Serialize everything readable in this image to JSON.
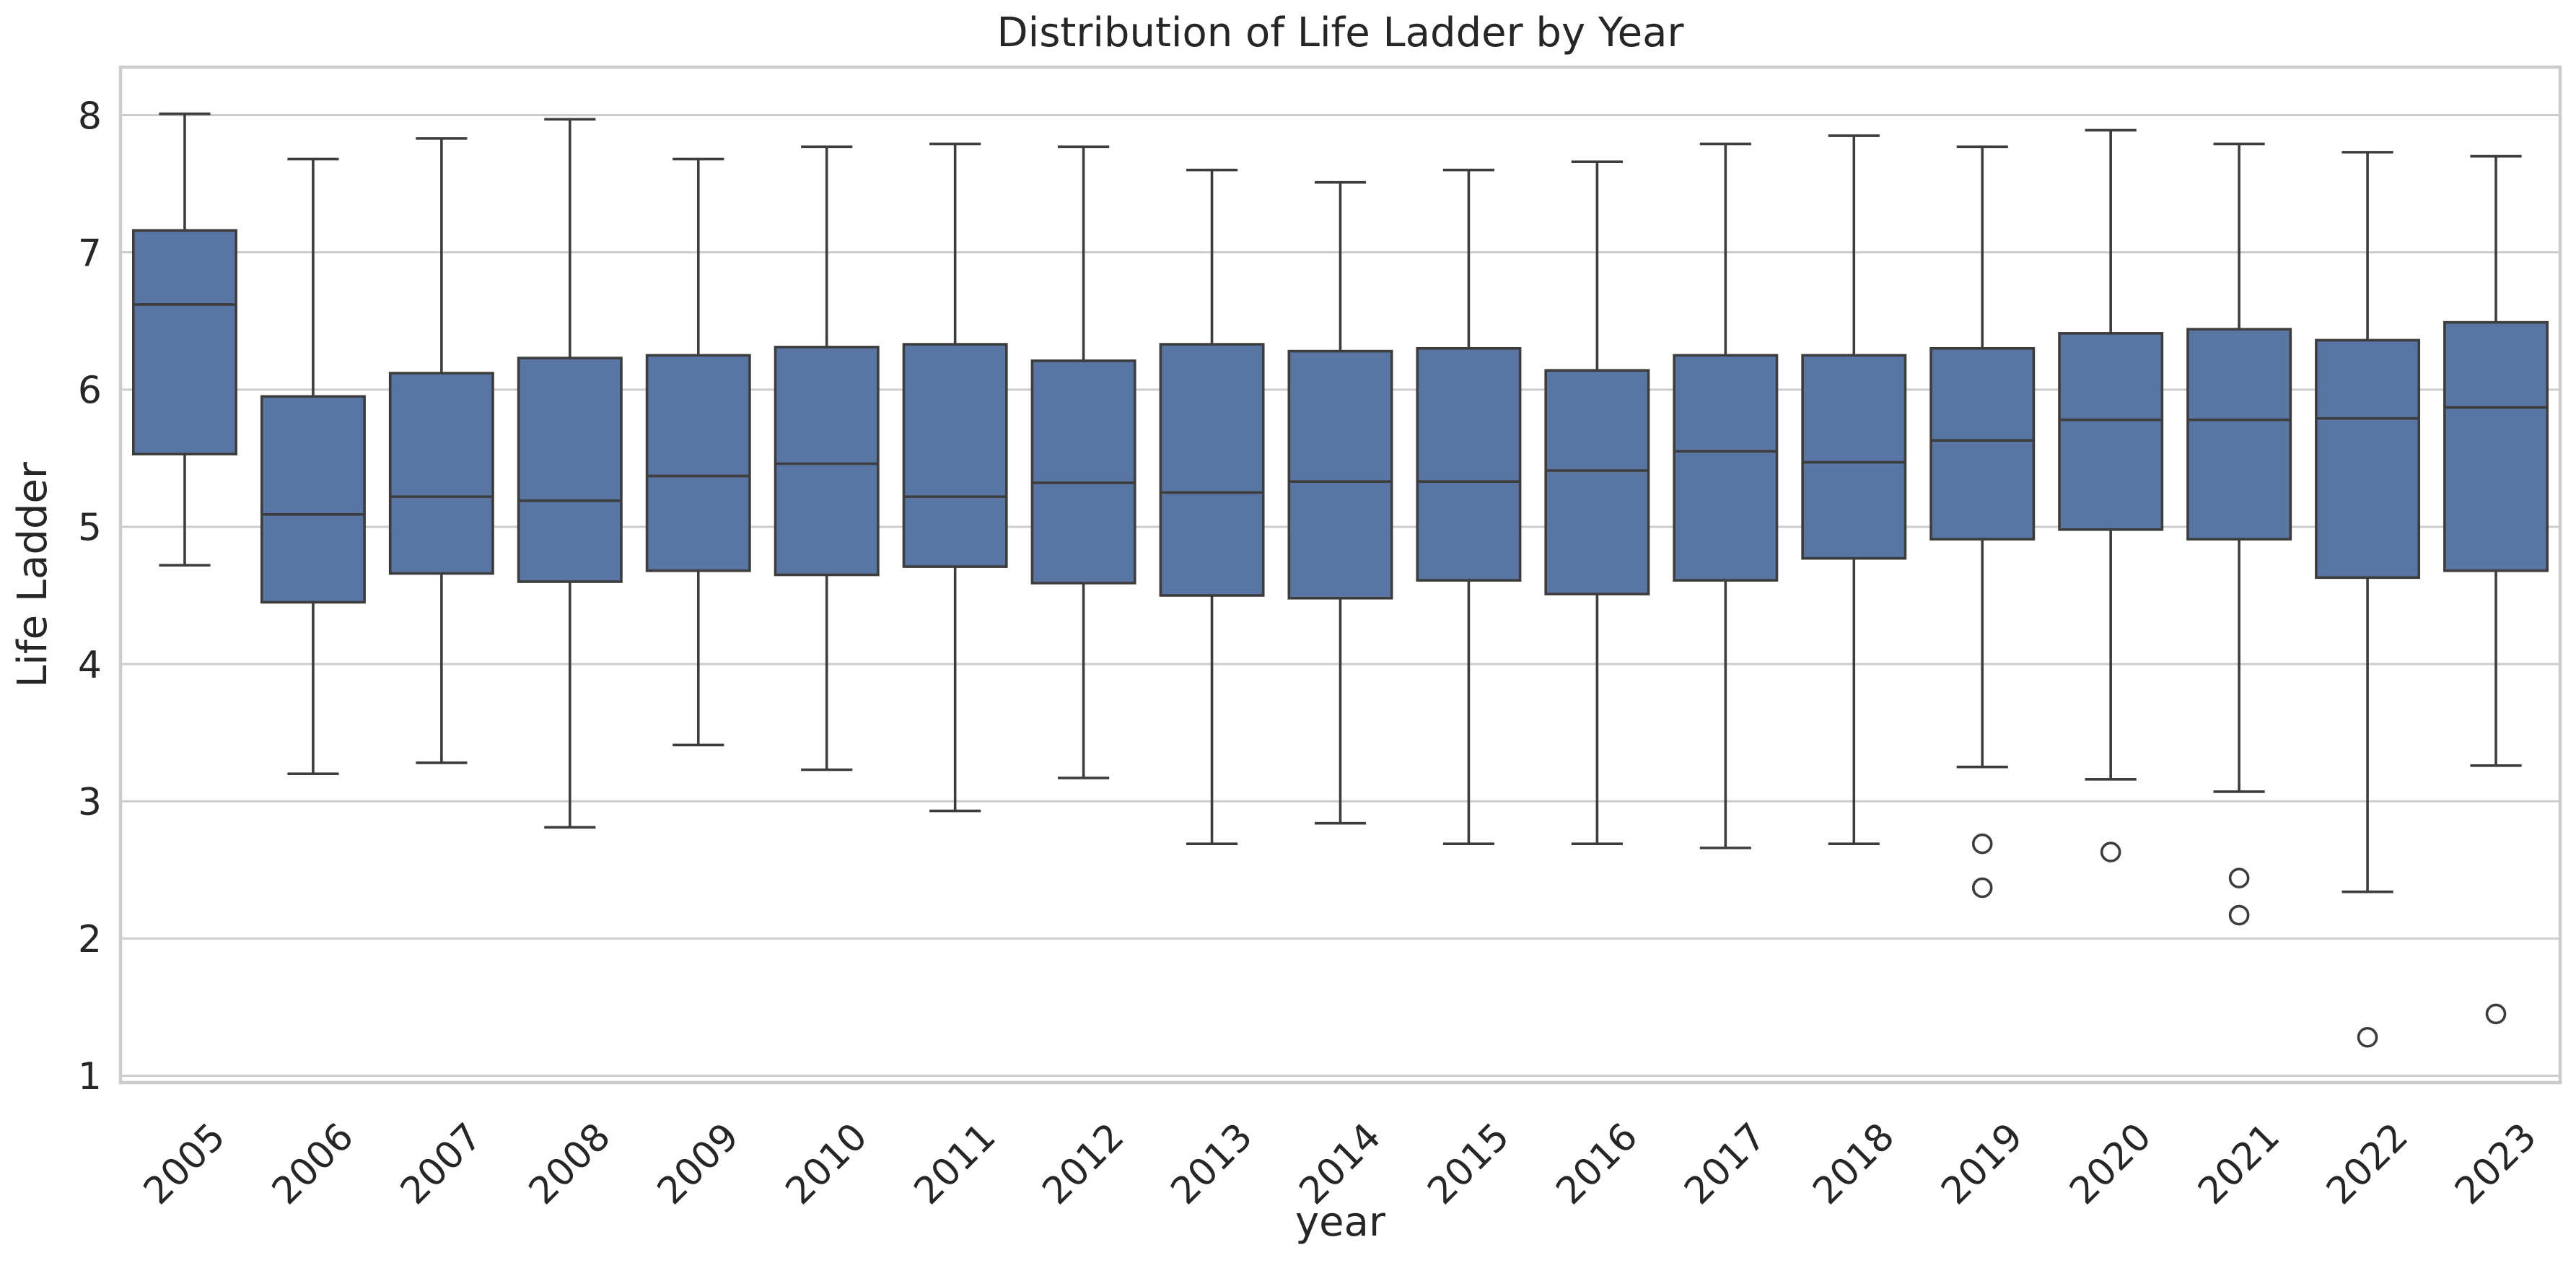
{
  "chart_data": {
    "type": "boxplot",
    "title": "Distribution of Life Ladder by Year",
    "xlabel": "year",
    "ylabel": "Life Ladder",
    "ylim": [
      0.95,
      8.35
    ],
    "yticks": [
      1,
      2,
      3,
      4,
      5,
      6,
      7,
      8
    ],
    "grid": true,
    "colors": {
      "box_fill": "#5875a4",
      "line": "#3d3d3d",
      "grid": "#cccccc",
      "frame": "#cccccc",
      "text": "#262626"
    },
    "categories": [
      "2005",
      "2006",
      "2007",
      "2008",
      "2009",
      "2010",
      "2011",
      "2012",
      "2013",
      "2014",
      "2015",
      "2016",
      "2017",
      "2018",
      "2019",
      "2020",
      "2021",
      "2022",
      "2023"
    ],
    "boxes": [
      {
        "label": "2005",
        "whisker_low": 4.72,
        "q1": 5.53,
        "median": 6.62,
        "q3": 7.16,
        "whisker_high": 8.01,
        "outliers": []
      },
      {
        "label": "2006",
        "whisker_low": 3.2,
        "q1": 4.45,
        "median": 5.09,
        "q3": 5.95,
        "whisker_high": 7.68,
        "outliers": []
      },
      {
        "label": "2007",
        "whisker_low": 3.28,
        "q1": 4.66,
        "median": 5.22,
        "q3": 6.12,
        "whisker_high": 7.83,
        "outliers": []
      },
      {
        "label": "2008",
        "whisker_low": 2.81,
        "q1": 4.6,
        "median": 5.19,
        "q3": 6.23,
        "whisker_high": 7.97,
        "outliers": []
      },
      {
        "label": "2009",
        "whisker_low": 3.41,
        "q1": 4.68,
        "median": 5.37,
        "q3": 6.25,
        "whisker_high": 7.68,
        "outliers": []
      },
      {
        "label": "2010",
        "whisker_low": 3.23,
        "q1": 4.65,
        "median": 5.46,
        "q3": 6.31,
        "whisker_high": 7.77,
        "outliers": []
      },
      {
        "label": "2011",
        "whisker_low": 2.93,
        "q1": 4.71,
        "median": 5.22,
        "q3": 6.33,
        "whisker_high": 7.79,
        "outliers": []
      },
      {
        "label": "2012",
        "whisker_low": 3.17,
        "q1": 4.59,
        "median": 5.32,
        "q3": 6.21,
        "whisker_high": 7.77,
        "outliers": []
      },
      {
        "label": "2013",
        "whisker_low": 2.69,
        "q1": 4.5,
        "median": 5.25,
        "q3": 6.33,
        "whisker_high": 7.6,
        "outliers": []
      },
      {
        "label": "2014",
        "whisker_low": 2.84,
        "q1": 4.48,
        "median": 5.33,
        "q3": 6.28,
        "whisker_high": 7.51,
        "outliers": []
      },
      {
        "label": "2015",
        "whisker_low": 2.69,
        "q1": 4.61,
        "median": 5.33,
        "q3": 6.3,
        "whisker_high": 7.6,
        "outliers": []
      },
      {
        "label": "2016",
        "whisker_low": 2.69,
        "q1": 4.51,
        "median": 5.41,
        "q3": 6.14,
        "whisker_high": 7.66,
        "outliers": []
      },
      {
        "label": "2017",
        "whisker_low": 2.66,
        "q1": 4.61,
        "median": 5.55,
        "q3": 6.25,
        "whisker_high": 7.79,
        "outliers": []
      },
      {
        "label": "2018",
        "whisker_low": 2.69,
        "q1": 4.77,
        "median": 5.47,
        "q3": 6.25,
        "whisker_high": 7.85,
        "outliers": []
      },
      {
        "label": "2019",
        "whisker_low": 3.25,
        "q1": 4.91,
        "median": 5.63,
        "q3": 6.3,
        "whisker_high": 7.77,
        "outliers": [
          2.69,
          2.37
        ]
      },
      {
        "label": "2020",
        "whisker_low": 3.16,
        "q1": 4.98,
        "median": 5.78,
        "q3": 6.41,
        "whisker_high": 7.89,
        "outliers": [
          2.63
        ]
      },
      {
        "label": "2021",
        "whisker_low": 3.07,
        "q1": 4.91,
        "median": 5.78,
        "q3": 6.44,
        "whisker_high": 7.79,
        "outliers": [
          2.44,
          2.17
        ]
      },
      {
        "label": "2022",
        "whisker_low": 2.34,
        "q1": 4.63,
        "median": 5.79,
        "q3": 6.36,
        "whisker_high": 7.73,
        "outliers": [
          1.28
        ]
      },
      {
        "label": "2023",
        "whisker_low": 3.26,
        "q1": 4.68,
        "median": 5.87,
        "q3": 6.49,
        "whisker_high": 7.7,
        "outliers": [
          1.45
        ]
      }
    ]
  }
}
